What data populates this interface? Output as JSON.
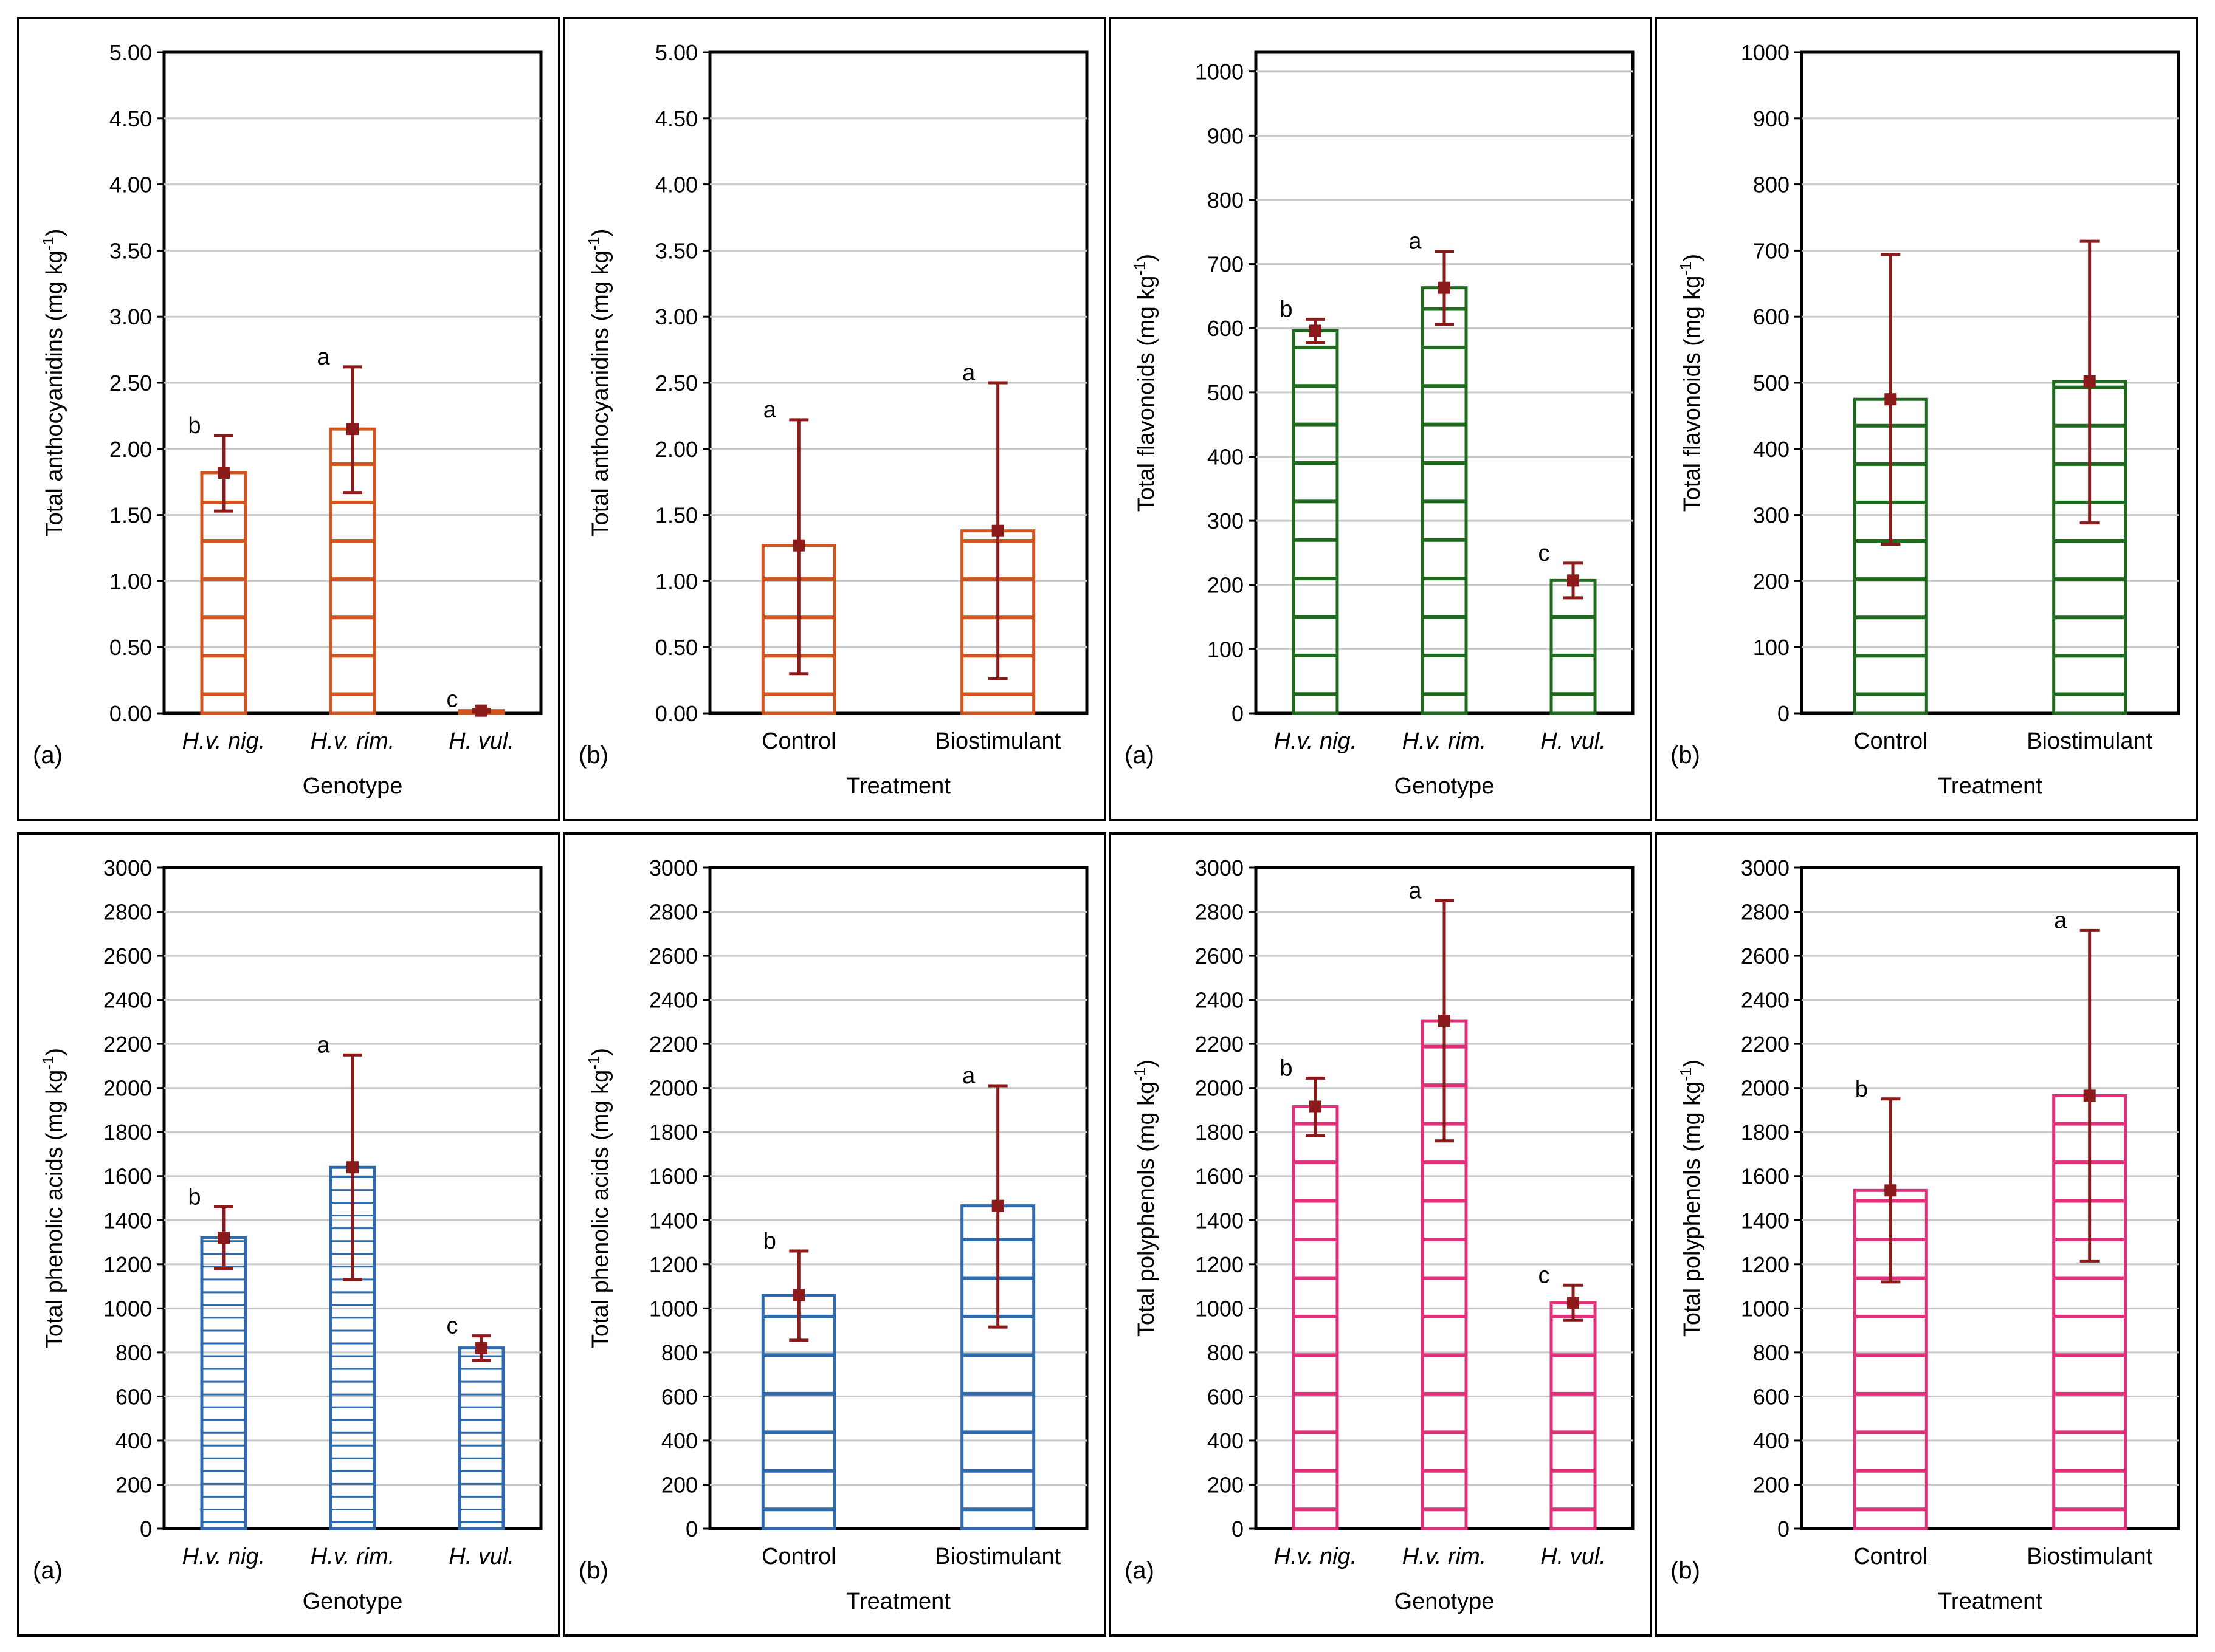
{
  "figure": {
    "accent_colors": {
      "orange": "#d2541e",
      "green": "#1e6b1e",
      "blue": "#2f6aad",
      "pink": "#e0307a",
      "errbar": "#8b1a1a"
    },
    "panels": [
      {
        "id": "anth-genotype",
        "panel_label": "(a)",
        "color": "#d2541e",
        "stripe_gap": 0.29,
        "chart_data": {
          "type": "bar",
          "title": "",
          "xlabel": "Genotype",
          "ylabel": "Total anthocyanidins (mg kg-1)",
          "ylabel_main": "Total anthocyanidins (mg kg",
          "ylabel_sup": "-1",
          "ylabel_tail": ")",
          "ylim": [
            0,
            5
          ],
          "yticks": [
            0,
            0.5,
            1,
            1.5,
            2,
            2.5,
            3,
            3.5,
            4,
            4.5,
            5
          ],
          "ytick_labels": [
            "0.00",
            "0.50",
            "1.00",
            "1.50",
            "2.00",
            "2.50",
            "3.00",
            "3.50",
            "4.00",
            "4.50",
            "5.00"
          ],
          "grid": true,
          "categories": [
            "H.v. nig.",
            "H.v. rim.",
            "H. vul."
          ],
          "categories_italic": true,
          "values": [
            1.82,
            2.15,
            0.02
          ],
          "error_low": [
            1.53,
            1.67,
            0.01
          ],
          "error_high": [
            2.1,
            2.62,
            0.03
          ],
          "sig_letters": [
            "b",
            "a",
            "c"
          ]
        }
      },
      {
        "id": "anth-treatment",
        "panel_label": "(b)",
        "color": "#d2541e",
        "stripe_gap": 0.29,
        "chart_data": {
          "type": "bar",
          "title": "",
          "xlabel": "Treatment",
          "ylabel": "Total anthocyanidins (mg kg-1)",
          "ylabel_main": "Total anthocyanidins (mg kg",
          "ylabel_sup": "-1",
          "ylabel_tail": ")",
          "ylim": [
            0,
            5
          ],
          "yticks": [
            0,
            0.5,
            1,
            1.5,
            2,
            2.5,
            3,
            3.5,
            4,
            4.5,
            5
          ],
          "ytick_labels": [
            "0.00",
            "0.50",
            "1.00",
            "1.50",
            "2.00",
            "2.50",
            "3.00",
            "3.50",
            "4.00",
            "4.50",
            "5.00"
          ],
          "grid": true,
          "categories": [
            "Control",
            "Biostimulant"
          ],
          "categories_italic": false,
          "values": [
            1.27,
            1.38
          ],
          "error_low": [
            0.3,
            0.26
          ],
          "error_high": [
            2.22,
            2.5
          ],
          "sig_letters": [
            "a",
            "a"
          ]
        }
      },
      {
        "id": "flav-genotype",
        "panel_label": "(a)",
        "color": "#1e6b1e",
        "stripe_gap": 60,
        "chart_data": {
          "type": "bar",
          "title": "",
          "xlabel": "Genotype",
          "ylabel": "Total flavonoids (mg kg-1)",
          "ylabel_main": "Total flavonoids (mg kg",
          "ylabel_sup": "-1",
          "ylabel_tail": ")",
          "ylim": [
            0,
            1030
          ],
          "yticks": [
            0,
            100,
            200,
            300,
            400,
            500,
            600,
            700,
            800,
            900,
            1000
          ],
          "ytick_labels": [
            "0",
            "100",
            "200",
            "300",
            "400",
            "500",
            "600",
            "700",
            "800",
            "900",
            "1000"
          ],
          "grid": true,
          "categories": [
            "H.v. nig.",
            "H.v. rim.",
            "H. vul."
          ],
          "categories_italic": true,
          "values": [
            596,
            663,
            207
          ],
          "error_low": [
            578,
            606,
            180
          ],
          "error_high": [
            614,
            720,
            234
          ],
          "sig_letters": [
            "b",
            "a",
            "c"
          ]
        }
      },
      {
        "id": "flav-treatment",
        "panel_label": "(b)",
        "color": "#1e6b1e",
        "stripe_gap": 58,
        "chart_data": {
          "type": "bar",
          "title": "",
          "xlabel": "Treatment",
          "ylabel": "Total flavonoids (mg kg-1)",
          "ylabel_main": "Total flavonoids (mg kg",
          "ylabel_sup": "-1",
          "ylabel_tail": ")",
          "ylim": [
            0,
            1000
          ],
          "yticks": [
            0,
            100,
            200,
            300,
            400,
            500,
            600,
            700,
            800,
            900,
            1000
          ],
          "ytick_labels": [
            "0",
            "100",
            "200",
            "300",
            "400",
            "500",
            "600",
            "700",
            "800",
            "900",
            "1000"
          ],
          "grid": true,
          "categories": [
            "Control",
            "Biostimulant"
          ],
          "categories_italic": false,
          "values": [
            475,
            502
          ],
          "error_low": [
            256,
            288
          ],
          "error_high": [
            694,
            714
          ],
          "sig_letters": [
            "",
            ""
          ]
        }
      },
      {
        "id": "phen-genotype",
        "panel_label": "(a)",
        "color": "#2f6aad",
        "stripe_gap": 58,
        "chart_data": {
          "type": "bar",
          "title": "",
          "xlabel": "Genotype",
          "ylabel": "Total phenolic acids (mg kg-1)",
          "ylabel_main": "Total phenolic acids (mg kg",
          "ylabel_sup": "-1",
          "ylabel_tail": ")",
          "ylim": [
            0,
            3000
          ],
          "yticks": [
            0,
            200,
            400,
            600,
            800,
            1000,
            1200,
            1400,
            1600,
            1800,
            2000,
            2200,
            2400,
            2600,
            2800,
            3000
          ],
          "ytick_labels": [
            "0",
            "200",
            "400",
            "600",
            "800",
            "1000",
            "1200",
            "1400",
            "1600",
            "1800",
            "2000",
            "2200",
            "2400",
            "2600",
            "2800",
            "3000"
          ],
          "grid": true,
          "categories": [
            "H.v. nig.",
            "H.v. rim.",
            "H. vul."
          ],
          "categories_italic": true,
          "values": [
            1320,
            1640,
            820
          ],
          "error_low": [
            1180,
            1130,
            765
          ],
          "error_high": [
            1460,
            2150,
            875
          ],
          "sig_letters": [
            "b",
            "a",
            "c"
          ]
        }
      },
      {
        "id": "phen-treatment",
        "panel_label": "(b)",
        "color": "#2f6aad",
        "stripe_gap": 175,
        "chart_data": {
          "type": "bar",
          "title": "",
          "xlabel": "Treatment",
          "ylabel": "Total phenolic acids (mg kg-1)",
          "ylabel_main": "Total phenolic acids (mg kg",
          "ylabel_sup": "-1",
          "ylabel_tail": ")",
          "ylim": [
            0,
            3000
          ],
          "yticks": [
            0,
            200,
            400,
            600,
            800,
            1000,
            1200,
            1400,
            1600,
            1800,
            2000,
            2200,
            2400,
            2600,
            2800,
            3000
          ],
          "ytick_labels": [
            "0",
            "200",
            "400",
            "600",
            "800",
            "1000",
            "1200",
            "1400",
            "1600",
            "1800",
            "2000",
            "2200",
            "2400",
            "2600",
            "2800",
            "3000"
          ],
          "grid": true,
          "categories": [
            "Control",
            "Biostimulant"
          ],
          "categories_italic": false,
          "values": [
            1060,
            1465
          ],
          "error_low": [
            855,
            915
          ],
          "error_high": [
            1260,
            2010
          ],
          "sig_letters": [
            "b",
            "a"
          ]
        }
      },
      {
        "id": "poly-genotype",
        "panel_label": "(a)",
        "color": "#e0307a",
        "stripe_gap": 175,
        "chart_data": {
          "type": "bar",
          "title": "",
          "xlabel": "Genotype",
          "ylabel": "Total polyphenols (mg kg-1)",
          "ylabel_main": "Total polyphenols (mg kg",
          "ylabel_sup": "-1",
          "ylabel_tail": ")",
          "ylim": [
            0,
            3000
          ],
          "yticks": [
            0,
            200,
            400,
            600,
            800,
            1000,
            1200,
            1400,
            1600,
            1800,
            2000,
            2200,
            2400,
            2600,
            2800,
            3000
          ],
          "ytick_labels": [
            "0",
            "200",
            "400",
            "600",
            "800",
            "1000",
            "1200",
            "1400",
            "1600",
            "1800",
            "2000",
            "2200",
            "2400",
            "2600",
            "2800",
            "3000"
          ],
          "grid": true,
          "categories": [
            "H.v. nig.",
            "H.v. rim.",
            "H. vul."
          ],
          "categories_italic": true,
          "values": [
            1915,
            2305,
            1025
          ],
          "error_low": [
            1785,
            1760,
            945
          ],
          "error_high": [
            2045,
            2850,
            1105
          ],
          "sig_letters": [
            "b",
            "a",
            "c"
          ]
        }
      },
      {
        "id": "poly-treatment",
        "panel_label": "(b)",
        "color": "#e0307a",
        "stripe_gap": 175,
        "chart_data": {
          "type": "bar",
          "title": "",
          "xlabel": "Treatment",
          "ylabel": "Total polyphenols (mg kg-1)",
          "ylabel_main": "Total polyphenols (mg kg",
          "ylabel_sup": "-1",
          "ylabel_tail": ")",
          "ylim": [
            0,
            3000
          ],
          "yticks": [
            0,
            200,
            400,
            600,
            800,
            1000,
            1200,
            1400,
            1600,
            1800,
            2000,
            2200,
            2400,
            2600,
            2800,
            3000
          ],
          "ytick_labels": [
            "0",
            "200",
            "400",
            "600",
            "800",
            "1000",
            "1200",
            "1400",
            "1600",
            "1800",
            "2000",
            "2200",
            "2400",
            "2600",
            "2800",
            "3000"
          ],
          "grid": true,
          "categories": [
            "Control",
            "Biostimulant"
          ],
          "categories_italic": false,
          "values": [
            1535,
            1965
          ],
          "error_low": [
            1120,
            1215
          ],
          "error_high": [
            1950,
            2715
          ],
          "sig_letters": [
            "b",
            "a"
          ]
        }
      }
    ]
  }
}
